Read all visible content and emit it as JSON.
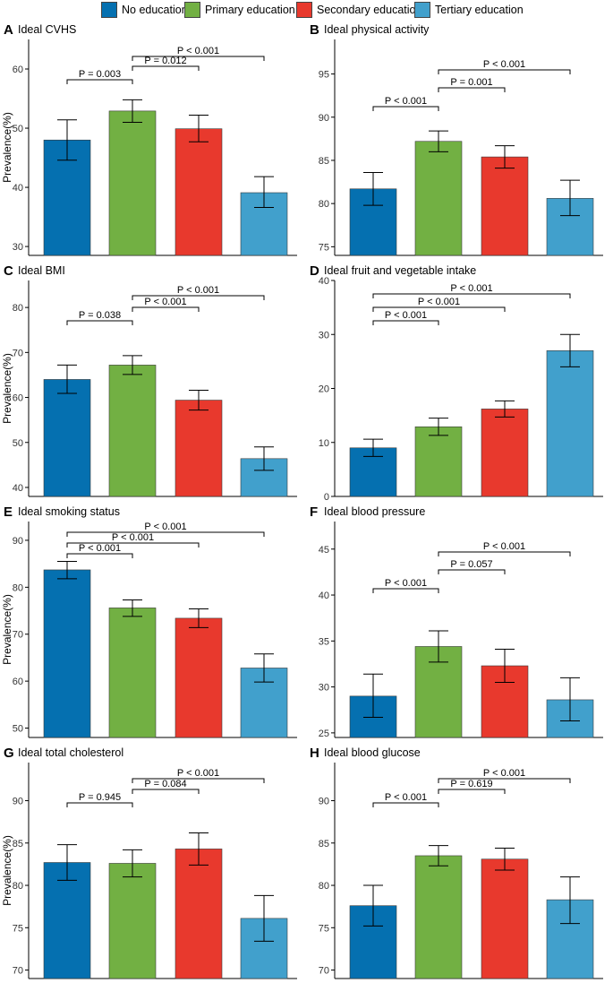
{
  "legend": [
    {
      "label": "No education",
      "color": "#0570b0"
    },
    {
      "label": "Primary education",
      "color": "#72b043"
    },
    {
      "label": "Secondary education",
      "color": "#e8392d"
    },
    {
      "label": "Tertiary education",
      "color": "#41a0cc"
    }
  ],
  "chart_data": [
    {
      "letter": "A",
      "type": "bar",
      "title": "Ideal CVHS",
      "ylabel": "Prevalence(%)",
      "ylim": [
        28.5,
        65
      ],
      "yticks": [
        30,
        40,
        50,
        60
      ],
      "categories": [
        "No education",
        "Primary education",
        "Secondary education",
        "Tertiary education"
      ],
      "values": [
        48.0,
        52.9,
        49.9,
        39.1
      ],
      "ci_low": [
        44.6,
        51.0,
        47.7,
        36.6
      ],
      "ci_high": [
        51.4,
        54.8,
        52.2,
        41.8
      ],
      "comparisons": [
        {
          "from": 0,
          "to": 1,
          "label": "P = 0.003"
        },
        {
          "from": 1,
          "to": 2,
          "label": "P = 0.012"
        },
        {
          "from": 1,
          "to": 3,
          "label": "P < 0.001"
        }
      ]
    },
    {
      "letter": "B",
      "type": "bar",
      "title": "Ideal physical activity",
      "ylabel": "",
      "ylim": [
        74,
        99
      ],
      "yticks": [
        75,
        80,
        85,
        90,
        95
      ],
      "categories": [
        "No education",
        "Primary education",
        "Secondary education",
        "Tertiary education"
      ],
      "values": [
        81.7,
        87.2,
        85.4,
        80.6
      ],
      "ci_low": [
        79.8,
        86.0,
        84.1,
        78.6
      ],
      "ci_high": [
        83.6,
        88.4,
        86.7,
        82.7
      ],
      "comparisons": [
        {
          "from": 0,
          "to": 1,
          "label": "P < 0.001"
        },
        {
          "from": 1,
          "to": 2,
          "label": "P = 0.001"
        },
        {
          "from": 1,
          "to": 3,
          "label": "P < 0.001"
        }
      ]
    },
    {
      "letter": "C",
      "type": "bar",
      "title": "Ideal BMI",
      "ylabel": "Prevalence(%)",
      "ylim": [
        38,
        86
      ],
      "yticks": [
        40,
        50,
        60,
        70,
        80
      ],
      "categories": [
        "No education",
        "Primary education",
        "Secondary education",
        "Tertiary education"
      ],
      "values": [
        64.0,
        67.2,
        59.4,
        46.4
      ],
      "ci_low": [
        60.9,
        65.1,
        57.2,
        43.8
      ],
      "ci_high": [
        67.2,
        69.3,
        61.6,
        49.0
      ],
      "comparisons": [
        {
          "from": 0,
          "to": 1,
          "label": "P = 0.038"
        },
        {
          "from": 1,
          "to": 2,
          "label": "P < 0.001"
        },
        {
          "from": 1,
          "to": 3,
          "label": "P < 0.001"
        }
      ]
    },
    {
      "letter": "D",
      "type": "bar",
      "title": "Ideal fruit and vegetable intake",
      "ylabel": "",
      "ylim": [
        0,
        40
      ],
      "yticks": [
        0,
        10,
        20,
        30,
        40
      ],
      "categories": [
        "No education",
        "Primary education",
        "Secondary education",
        "Tertiary education"
      ],
      "values": [
        9.0,
        12.9,
        16.2,
        27.0
      ],
      "ci_low": [
        7.4,
        11.3,
        14.7,
        24.0
      ],
      "ci_high": [
        10.6,
        14.5,
        17.7,
        30.0
      ],
      "comparisons": [
        {
          "from": 0,
          "to": 1,
          "label": "P < 0.001"
        },
        {
          "from": 0,
          "to": 2,
          "label": "P < 0.001"
        },
        {
          "from": 0,
          "to": 3,
          "label": "P < 0.001"
        }
      ]
    },
    {
      "letter": "E",
      "type": "bar",
      "title": "Ideal smoking status",
      "ylabel": "Prevalence(%)",
      "ylim": [
        48,
        94
      ],
      "yticks": [
        50,
        60,
        70,
        80,
        90
      ],
      "categories": [
        "No education",
        "Primary education",
        "Secondary education",
        "Tertiary education"
      ],
      "values": [
        83.7,
        75.6,
        73.4,
        62.8
      ],
      "ci_low": [
        81.8,
        73.8,
        71.4,
        59.8
      ],
      "ci_high": [
        85.5,
        77.3,
        75.4,
        65.8
      ],
      "comparisons": [
        {
          "from": 0,
          "to": 1,
          "label": "P < 0.001"
        },
        {
          "from": 0,
          "to": 2,
          "label": "P < 0.001"
        },
        {
          "from": 0,
          "to": 3,
          "label": "P < 0.001"
        }
      ]
    },
    {
      "letter": "F",
      "type": "bar",
      "title": "Ideal blood pressure",
      "ylabel": "",
      "ylim": [
        24.5,
        48
      ],
      "yticks": [
        25,
        30,
        35,
        40,
        45
      ],
      "categories": [
        "No education",
        "Primary education",
        "Secondary education",
        "Tertiary education"
      ],
      "values": [
        29.0,
        34.4,
        32.3,
        28.6
      ],
      "ci_low": [
        26.7,
        32.7,
        30.5,
        26.3
      ],
      "ci_high": [
        31.4,
        36.1,
        34.1,
        31.0
      ],
      "comparisons": [
        {
          "from": 0,
          "to": 1,
          "label": "P < 0.001"
        },
        {
          "from": 1,
          "to": 2,
          "label": "P = 0.057"
        },
        {
          "from": 1,
          "to": 3,
          "label": "P < 0.001"
        }
      ]
    },
    {
      "letter": "G",
      "type": "bar",
      "title": "Ideal total cholesterol",
      "ylabel": "Prevalence(%)",
      "ylim": [
        69,
        94.5
      ],
      "yticks": [
        70,
        75,
        80,
        85,
        90
      ],
      "categories": [
        "No education",
        "Primary education",
        "Secondary education",
        "Tertiary education"
      ],
      "values": [
        82.7,
        82.6,
        84.3,
        76.1
      ],
      "ci_low": [
        80.6,
        81.0,
        82.4,
        73.4
      ],
      "ci_high": [
        84.8,
        84.2,
        86.2,
        78.8
      ],
      "comparisons": [
        {
          "from": 0,
          "to": 1,
          "label": "P = 0.945"
        },
        {
          "from": 1,
          "to": 2,
          "label": "P = 0.084"
        },
        {
          "from": 1,
          "to": 3,
          "label": "P < 0.001"
        }
      ]
    },
    {
      "letter": "H",
      "type": "bar",
      "title": "Ideal blood glucose",
      "ylabel": "",
      "ylim": [
        69,
        94.5
      ],
      "yticks": [
        70,
        75,
        80,
        85,
        90
      ],
      "categories": [
        "No education",
        "Primary education",
        "Secondary education",
        "Tertiary education"
      ],
      "values": [
        77.6,
        83.5,
        83.1,
        78.3
      ],
      "ci_low": [
        75.2,
        82.3,
        81.8,
        75.5
      ],
      "ci_high": [
        80.0,
        84.7,
        84.4,
        81.0
      ],
      "comparisons": [
        {
          "from": 0,
          "to": 1,
          "label": "P < 0.001"
        },
        {
          "from": 1,
          "to": 2,
          "label": "P = 0.619"
        },
        {
          "from": 1,
          "to": 3,
          "label": "P < 0.001"
        }
      ]
    }
  ]
}
